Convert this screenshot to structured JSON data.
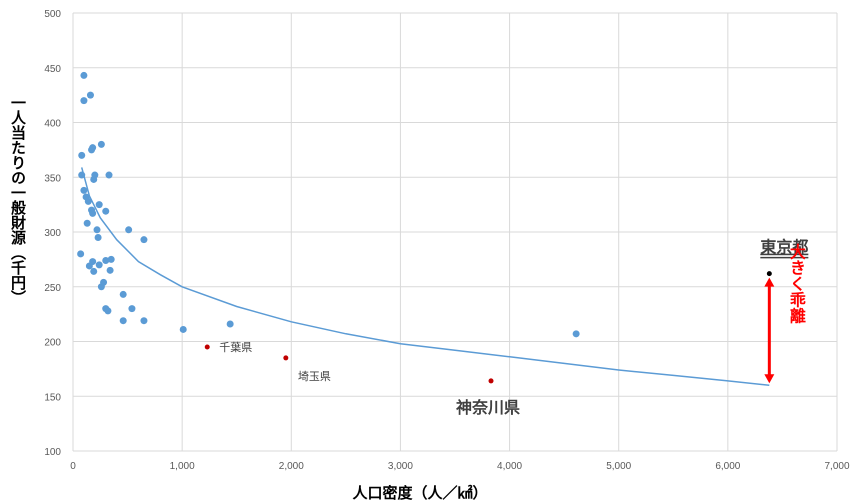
{
  "chart_data": {
    "type": "scatter",
    "title": "",
    "xlabel": "人口密度（人／㎢）",
    "ylabel": "一人当たりの一般財源（千円）",
    "xlim": [
      0,
      7000
    ],
    "ylim": [
      100,
      500
    ],
    "x_ticks": [
      0,
      1000,
      2000,
      3000,
      4000,
      5000,
      6000,
      7000
    ],
    "x_tick_labels": [
      "0",
      "1,000",
      "2,000",
      "3,000",
      "4,000",
      "5,000",
      "6,000",
      "7,000"
    ],
    "y_ticks": [
      100,
      150,
      200,
      250,
      300,
      350,
      400,
      450,
      500
    ],
    "y_tick_labels": [
      "100",
      "150",
      "200",
      "250",
      "300",
      "350",
      "400",
      "450",
      "500"
    ],
    "grid": true,
    "series": [
      {
        "color": "#5b9bd5",
        "points": [
          [
            70,
            280
          ],
          [
            80,
            370
          ],
          [
            80,
            352
          ],
          [
            100,
            443
          ],
          [
            100,
            420
          ],
          [
            100,
            338
          ],
          [
            120,
            332
          ],
          [
            130,
            308
          ],
          [
            140,
            328
          ],
          [
            150,
            269
          ],
          [
            160,
            425
          ],
          [
            170,
            320
          ],
          [
            170,
            375
          ],
          [
            180,
            377
          ],
          [
            180,
            317
          ],
          [
            180,
            273
          ],
          [
            190,
            348
          ],
          [
            190,
            264
          ],
          [
            200,
            352
          ],
          [
            220,
            302
          ],
          [
            230,
            295
          ],
          [
            240,
            325
          ],
          [
            240,
            270
          ],
          [
            260,
            380
          ],
          [
            260,
            250
          ],
          [
            280,
            254
          ],
          [
            300,
            319
          ],
          [
            300,
            274
          ],
          [
            300,
            230
          ],
          [
            320,
            228
          ],
          [
            330,
            352
          ],
          [
            340,
            265
          ],
          [
            350,
            275
          ],
          [
            460,
            219
          ],
          [
            460,
            243
          ],
          [
            510,
            302
          ],
          [
            540,
            230
          ],
          [
            650,
            293
          ],
          [
            650,
            219
          ],
          [
            1010,
            211
          ],
          [
            1440,
            216
          ],
          [
            4610,
            207
          ]
        ]
      },
      {
        "color": "#c00000",
        "points": [
          [
            1230,
            195
          ],
          [
            1950,
            185
          ],
          [
            3830,
            164
          ]
        ]
      },
      {
        "color": "#000000",
        "points": [
          [
            6380,
            262
          ]
        ]
      }
    ],
    "trendline": {
      "color": "#5b9bd5",
      "points": [
        [
          80,
          359
        ],
        [
          150,
          333
        ],
        [
          250,
          313
        ],
        [
          400,
          293
        ],
        [
          600,
          273
        ],
        [
          800,
          261
        ],
        [
          1000,
          250
        ],
        [
          1500,
          232
        ],
        [
          2000,
          218
        ],
        [
          2500,
          207
        ],
        [
          3000,
          198
        ],
        [
          3500,
          192
        ],
        [
          4000,
          186
        ],
        [
          4500,
          180
        ],
        [
          5000,
          174
        ],
        [
          5500,
          169
        ],
        [
          6000,
          164
        ],
        [
          6380,
          160
        ]
      ]
    },
    "annotations": [
      {
        "text": "千葉県",
        "x": 1230,
        "y": 195,
        "style": "small"
      },
      {
        "text": "埼玉県",
        "x": 1950,
        "y": 185,
        "style": "small"
      },
      {
        "text": "神奈川県",
        "x": 3830,
        "y": 164,
        "style": "big"
      },
      {
        "text": "東京都",
        "x": 6380,
        "y": 262,
        "style": "tokyo"
      },
      {
        "text": "大きく乖離",
        "color": "#ff0000",
        "y_from": 262,
        "y_to": 160,
        "x": 6380
      }
    ]
  }
}
